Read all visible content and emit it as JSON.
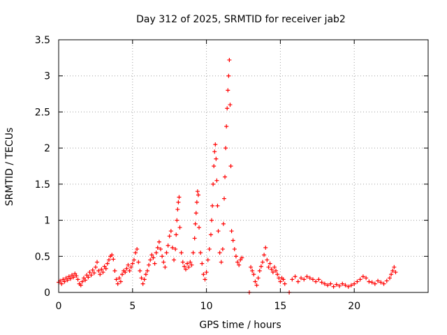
{
  "chart_data": {
    "type": "scatter",
    "title": "Day 312 of 2025, SRMTID for receiver jab2",
    "xlabel": "GPS time / hours",
    "ylabel": "SRMTID / TECUs",
    "xlim": [
      0,
      25
    ],
    "ylim": [
      0,
      3.5
    ],
    "xticks": [
      0,
      5,
      10,
      15,
      20
    ],
    "xtick_labels": [
      "0",
      "5",
      "10",
      "15",
      "20"
    ],
    "yticks": [
      0,
      0.5,
      1,
      1.5,
      2,
      2.5,
      3,
      3.5
    ],
    "ytick_labels": [
      "0",
      "0.5",
      "1",
      "1.5",
      "2",
      "2.5",
      "3",
      "3.5"
    ],
    "grid": true,
    "marker": "plus",
    "series_color": "#ff0000",
    "series": [
      {
        "name": "SRMTID",
        "points": [
          [
            0.0,
            0.14
          ],
          [
            0.1,
            0.16
          ],
          [
            0.2,
            0.12
          ],
          [
            0.3,
            0.18
          ],
          [
            0.4,
            0.15
          ],
          [
            0.5,
            0.2
          ],
          [
            0.6,
            0.17
          ],
          [
            0.7,
            0.22
          ],
          [
            0.8,
            0.19
          ],
          [
            0.9,
            0.24
          ],
          [
            1.0,
            0.21
          ],
          [
            1.1,
            0.26
          ],
          [
            1.2,
            0.23
          ],
          [
            1.3,
            0.18
          ],
          [
            1.4,
            0.12
          ],
          [
            1.5,
            0.1
          ],
          [
            1.6,
            0.15
          ],
          [
            1.7,
            0.2
          ],
          [
            1.8,
            0.17
          ],
          [
            1.9,
            0.24
          ],
          [
            2.0,
            0.21
          ],
          [
            2.1,
            0.28
          ],
          [
            2.2,
            0.24
          ],
          [
            2.3,
            0.31
          ],
          [
            2.4,
            0.27
          ],
          [
            2.5,
            0.35
          ],
          [
            2.6,
            0.42
          ],
          [
            2.7,
            0.3
          ],
          [
            2.8,
            0.25
          ],
          [
            2.9,
            0.32
          ],
          [
            3.0,
            0.28
          ],
          [
            3.1,
            0.36
          ],
          [
            3.2,
            0.33
          ],
          [
            3.3,
            0.4
          ],
          [
            3.4,
            0.45
          ],
          [
            3.5,
            0.5
          ],
          [
            3.6,
            0.52
          ],
          [
            3.7,
            0.46
          ],
          [
            3.8,
            0.3
          ],
          [
            3.9,
            0.18
          ],
          [
            4.0,
            0.12
          ],
          [
            4.1,
            0.2
          ],
          [
            4.2,
            0.15
          ],
          [
            4.3,
            0.25
          ],
          [
            4.4,
            0.3
          ],
          [
            4.5,
            0.28
          ],
          [
            4.6,
            0.33
          ],
          [
            4.7,
            0.38
          ],
          [
            4.8,
            0.3
          ],
          [
            4.9,
            0.35
          ],
          [
            5.0,
            0.4
          ],
          [
            5.1,
            0.45
          ],
          [
            5.2,
            0.55
          ],
          [
            5.3,
            0.6
          ],
          [
            5.4,
            0.42
          ],
          [
            5.5,
            0.3
          ],
          [
            5.6,
            0.2
          ],
          [
            5.7,
            0.12
          ],
          [
            5.8,
            0.18
          ],
          [
            5.9,
            0.25
          ],
          [
            6.0,
            0.3
          ],
          [
            6.1,
            0.38
          ],
          [
            6.2,
            0.45
          ],
          [
            6.3,
            0.52
          ],
          [
            6.4,
            0.48
          ],
          [
            6.5,
            0.4
          ],
          [
            6.6,
            0.55
          ],
          [
            6.7,
            0.62
          ],
          [
            6.8,
            0.7
          ],
          [
            6.9,
            0.6
          ],
          [
            7.0,
            0.5
          ],
          [
            7.1,
            0.42
          ],
          [
            7.2,
            0.35
          ],
          [
            7.3,
            0.55
          ],
          [
            7.4,
            0.65
          ],
          [
            7.5,
            0.78
          ],
          [
            7.6,
            0.85
          ],
          [
            7.7,
            0.62
          ],
          [
            7.8,
            0.45
          ],
          [
            7.9,
            0.6
          ],
          [
            7.95,
            0.8
          ],
          [
            8.0,
            1.0
          ],
          [
            8.05,
            1.15
          ],
          [
            8.1,
            1.25
          ],
          [
            8.15,
            1.32
          ],
          [
            8.2,
            0.9
          ],
          [
            8.3,
            0.55
          ],
          [
            8.4,
            0.42
          ],
          [
            8.5,
            0.36
          ],
          [
            8.6,
            0.32
          ],
          [
            8.7,
            0.4
          ],
          [
            8.8,
            0.35
          ],
          [
            8.9,
            0.42
          ],
          [
            9.0,
            0.38
          ],
          [
            9.1,
            0.55
          ],
          [
            9.2,
            0.75
          ],
          [
            9.25,
            0.95
          ],
          [
            9.3,
            1.1
          ],
          [
            9.35,
            1.25
          ],
          [
            9.4,
            1.4
          ],
          [
            9.45,
            1.35
          ],
          [
            9.5,
            0.9
          ],
          [
            9.6,
            0.55
          ],
          [
            9.7,
            0.4
          ],
          [
            9.8,
            0.25
          ],
          [
            9.9,
            0.18
          ],
          [
            10.0,
            0.28
          ],
          [
            10.1,
            0.45
          ],
          [
            10.2,
            0.6
          ],
          [
            10.3,
            0.8
          ],
          [
            10.35,
            1.0
          ],
          [
            10.4,
            1.2
          ],
          [
            10.45,
            1.5
          ],
          [
            10.5,
            1.75
          ],
          [
            10.55,
            1.95
          ],
          [
            10.6,
            2.05
          ],
          [
            10.65,
            1.85
          ],
          [
            10.7,
            1.55
          ],
          [
            10.75,
            1.2
          ],
          [
            10.8,
            0.85
          ],
          [
            10.9,
            0.55
          ],
          [
            11.0,
            0.42
          ],
          [
            11.1,
            0.6
          ],
          [
            11.15,
            0.95
          ],
          [
            11.2,
            1.3
          ],
          [
            11.25,
            1.6
          ],
          [
            11.3,
            2.0
          ],
          [
            11.35,
            2.3
          ],
          [
            11.4,
            2.55
          ],
          [
            11.45,
            2.8
          ],
          [
            11.5,
            3.0
          ],
          [
            11.55,
            3.22
          ],
          [
            11.6,
            2.6
          ],
          [
            11.65,
            1.75
          ],
          [
            11.7,
            0.85
          ],
          [
            11.8,
            0.72
          ],
          [
            11.9,
            0.6
          ],
          [
            12.0,
            0.5
          ],
          [
            12.1,
            0.42
          ],
          [
            12.2,
            0.38
          ],
          [
            12.3,
            0.45
          ],
          [
            12.4,
            0.48
          ],
          [
            12.9,
            0.0
          ],
          [
            13.0,
            0.35
          ],
          [
            13.1,
            0.3
          ],
          [
            13.2,
            0.25
          ],
          [
            13.3,
            0.15
          ],
          [
            13.4,
            0.1
          ],
          [
            13.5,
            0.2
          ],
          [
            13.6,
            0.3
          ],
          [
            13.7,
            0.36
          ],
          [
            13.8,
            0.42
          ],
          [
            13.9,
            0.52
          ],
          [
            14.0,
            0.62
          ],
          [
            14.1,
            0.45
          ],
          [
            14.2,
            0.35
          ],
          [
            14.3,
            0.4
          ],
          [
            14.4,
            0.32
          ],
          [
            14.5,
            0.28
          ],
          [
            14.6,
            0.35
          ],
          [
            14.7,
            0.3
          ],
          [
            14.8,
            0.25
          ],
          [
            14.9,
            0.2
          ],
          [
            15.0,
            0.15
          ],
          [
            15.1,
            0.2
          ],
          [
            15.2,
            0.18
          ],
          [
            15.3,
            0.12
          ],
          [
            15.6,
            0.0
          ],
          [
            15.8,
            0.18
          ],
          [
            16.0,
            0.22
          ],
          [
            16.2,
            0.15
          ],
          [
            16.4,
            0.2
          ],
          [
            16.6,
            0.18
          ],
          [
            16.8,
            0.22
          ],
          [
            17.0,
            0.2
          ],
          [
            17.2,
            0.18
          ],
          [
            17.4,
            0.15
          ],
          [
            17.6,
            0.18
          ],
          [
            17.8,
            0.14
          ],
          [
            18.0,
            0.12
          ],
          [
            18.2,
            0.1
          ],
          [
            18.4,
            0.12
          ],
          [
            18.6,
            0.08
          ],
          [
            18.8,
            0.11
          ],
          [
            19.0,
            0.09
          ],
          [
            19.2,
            0.12
          ],
          [
            19.4,
            0.1
          ],
          [
            19.6,
            0.08
          ],
          [
            19.8,
            0.1
          ],
          [
            20.0,
            0.12
          ],
          [
            20.2,
            0.15
          ],
          [
            20.4,
            0.18
          ],
          [
            20.6,
            0.22
          ],
          [
            20.8,
            0.2
          ],
          [
            21.0,
            0.15
          ],
          [
            21.2,
            0.14
          ],
          [
            21.4,
            0.12
          ],
          [
            21.6,
            0.16
          ],
          [
            21.8,
            0.14
          ],
          [
            22.0,
            0.12
          ],
          [
            22.2,
            0.16
          ],
          [
            22.4,
            0.2
          ],
          [
            22.5,
            0.25
          ],
          [
            22.6,
            0.3
          ],
          [
            22.7,
            0.35
          ],
          [
            22.8,
            0.28
          ]
        ]
      }
    ]
  }
}
